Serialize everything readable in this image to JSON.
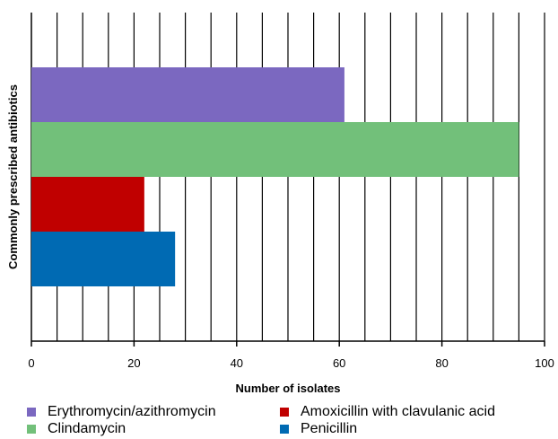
{
  "chart_data": {
    "type": "bar",
    "orientation": "horizontal",
    "title": "",
    "xlabel": "Number of isolates",
    "ylabel": "Commonly prescribed antibiotics",
    "xlim": [
      0,
      100
    ],
    "x_ticks": [
      0,
      20,
      40,
      60,
      80,
      100
    ],
    "x_tick_labels": [
      "0",
      "20",
      "40",
      "60",
      "80",
      "100"
    ],
    "grid": "vertical lines every 5",
    "legend_position": "bottom",
    "categories": [
      "Erythromycin/azithromycin",
      "Clindamycin",
      "Amoxicillin with clavulanic acid",
      "Penicillin"
    ],
    "values": [
      61,
      95,
      22,
      28
    ],
    "colors": [
      "#7b68c0",
      "#72c07a",
      "#c00000",
      "#006ab3"
    ]
  }
}
